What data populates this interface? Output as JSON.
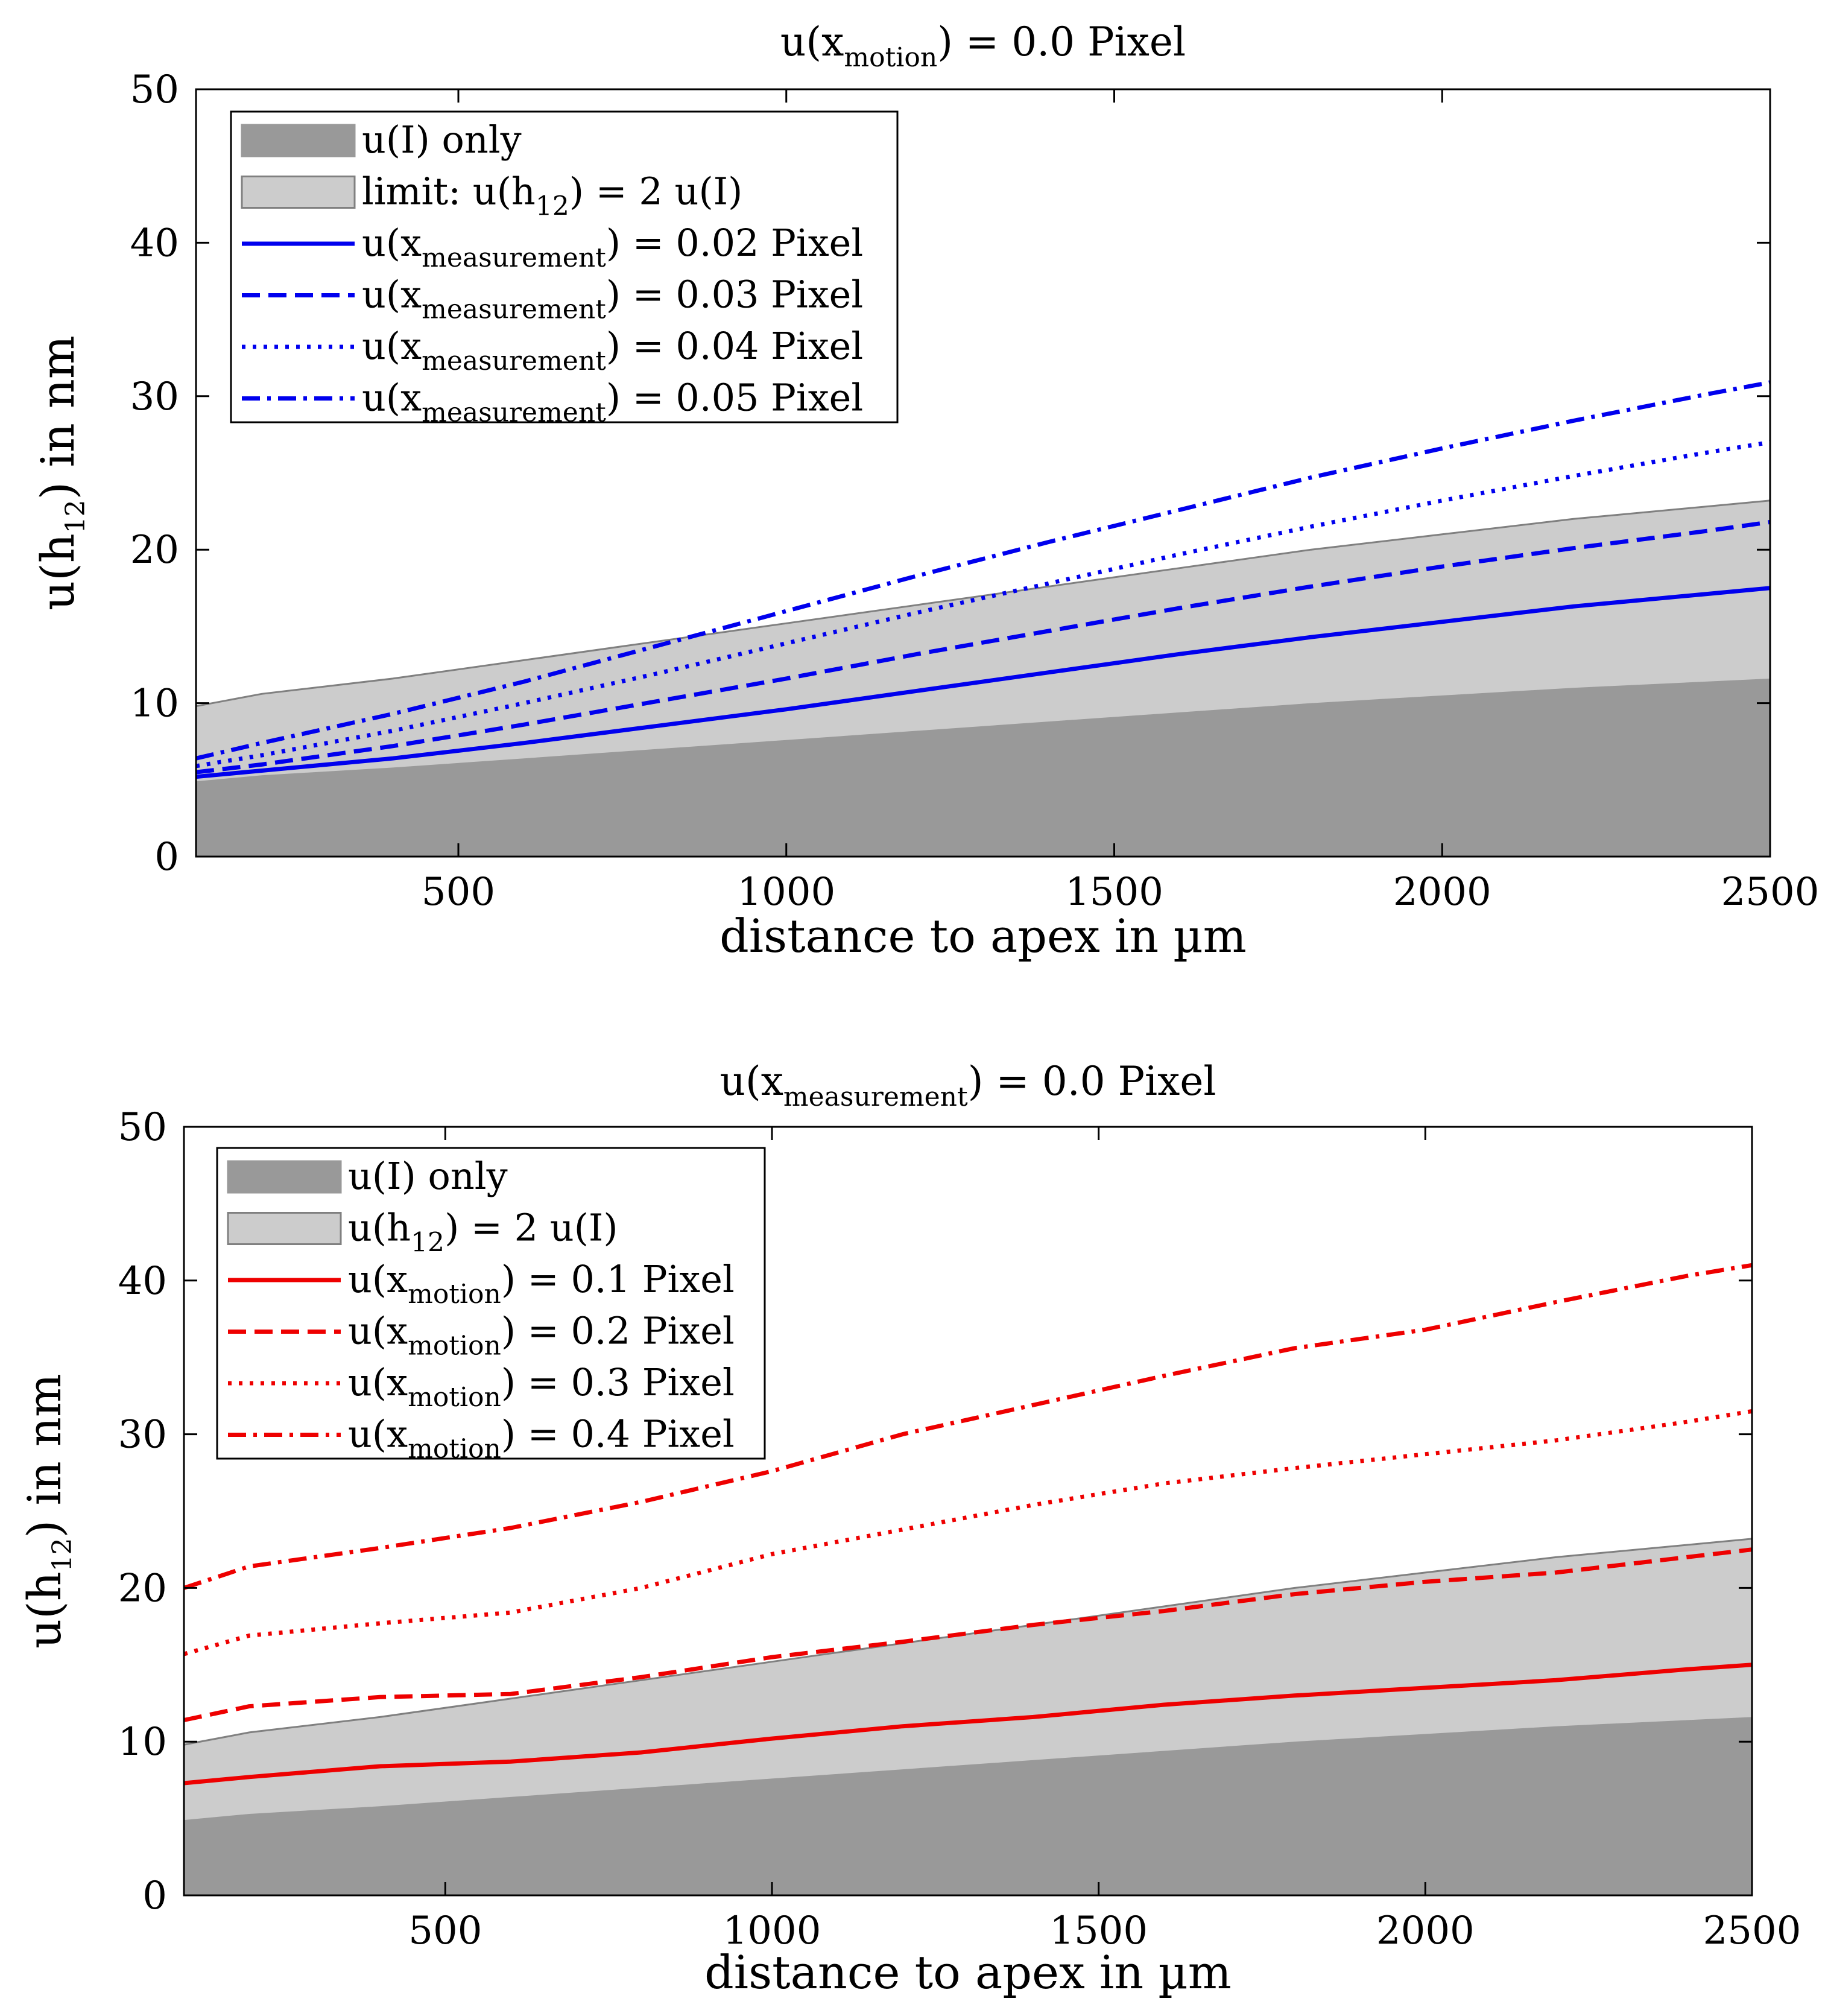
{
  "chart_data": [
    {
      "type": "area",
      "title": {
        "prefix": "u(x",
        "sub": "motion",
        "suffix": ") = 0.0 Pixel"
      },
      "xlabel": "distance to apex in µm",
      "ylabel": {
        "prefix": "u(h",
        "sub": "12",
        "suffix": ") in nm"
      },
      "xlim": [
        100,
        2500
      ],
      "ylim": [
        0,
        50
      ],
      "xticks": [
        500,
        1000,
        1500,
        2000,
        2500
      ],
      "xtick_labels": [
        "500",
        "1000",
        "1500",
        "2000",
        "2500"
      ],
      "yticks": [
        0,
        10,
        20,
        30,
        40,
        50
      ],
      "ytick_labels": [
        "0",
        "10",
        "20",
        "30",
        "40",
        "50"
      ],
      "colors": {
        "dark_band": "#999999",
        "light_band": "#cccccc",
        "series": "#0000ee"
      },
      "x": [
        100,
        200,
        400,
        600,
        800,
        1000,
        1200,
        1400,
        1600,
        1800,
        2000,
        2200,
        2400,
        2500
      ],
      "bands": [
        {
          "name": "u(I) only",
          "kind": "dark",
          "values": [
            4.9,
            5.3,
            5.8,
            6.4,
            7.0,
            7.6,
            8.2,
            8.8,
            9.4,
            10.0,
            10.5,
            11.0,
            11.4,
            11.6
          ]
        },
        {
          "name": "limit: u(h12) = 2 u(I)",
          "kind": "light",
          "values": [
            9.8,
            10.6,
            11.6,
            12.8,
            14.0,
            15.2,
            16.4,
            17.6,
            18.8,
            20.0,
            21.0,
            22.0,
            22.8,
            23.2
          ]
        }
      ],
      "series": [
        {
          "name": "u(x_measurement) = 0.02 Pixel",
          "style": "solid",
          "values": [
            5.2,
            5.6,
            6.4,
            7.4,
            8.5,
            9.6,
            10.8,
            12.0,
            13.2,
            14.3,
            15.3,
            16.3,
            17.1,
            17.5
          ]
        },
        {
          "name": "u(x_measurement) = 0.03 Pixel",
          "style": "dashed",
          "values": [
            5.5,
            6.0,
            7.2,
            8.6,
            10.1,
            11.6,
            13.2,
            14.7,
            16.2,
            17.6,
            18.9,
            20.1,
            21.2,
            21.8
          ]
        },
        {
          "name": "u(x_measurement) = 0.04 Pixel",
          "style": "dotted",
          "values": [
            5.9,
            6.6,
            8.2,
            10.0,
            11.9,
            13.9,
            15.9,
            17.8,
            19.7,
            21.5,
            23.2,
            24.8,
            26.3,
            27.0
          ]
        },
        {
          "name": "u(x_measurement) = 0.05 Pixel",
          "style": "dashdot",
          "values": [
            6.4,
            7.4,
            9.3,
            11.4,
            13.7,
            16.0,
            18.3,
            20.5,
            22.6,
            24.7,
            26.6,
            28.4,
            30.1,
            30.9
          ]
        }
      ],
      "legend": {
        "position": "top-left",
        "entries": [
          {
            "kind": "dark",
            "prefix": "u(I) only",
            "sub": "",
            "suffix": ""
          },
          {
            "kind": "light",
            "prefix": "limit: u(h",
            "sub": "12",
            "suffix": ") = 2 u(I)"
          },
          {
            "kind": "solid",
            "prefix": "u(x",
            "sub": "measurement",
            "suffix": ") = 0.02 Pixel"
          },
          {
            "kind": "dashed",
            "prefix": "u(x",
            "sub": "measurement",
            "suffix": ") = 0.03 Pixel"
          },
          {
            "kind": "dotted",
            "prefix": "u(x",
            "sub": "measurement",
            "suffix": ") = 0.04 Pixel"
          },
          {
            "kind": "dashdot",
            "prefix": "u(x",
            "sub": "measurement",
            "suffix": ") = 0.05 Pixel"
          }
        ]
      }
    },
    {
      "type": "area",
      "title": {
        "prefix": "u(x",
        "sub": "measurement",
        "suffix": ") = 0.0 Pixel"
      },
      "xlabel": "distance to apex in µm",
      "ylabel": {
        "prefix": "u(h",
        "sub": "12",
        "suffix": ") in nm"
      },
      "xlim": [
        100,
        2500
      ],
      "ylim": [
        0,
        50
      ],
      "xticks": [
        500,
        1000,
        1500,
        2000,
        2500
      ],
      "xtick_labels": [
        "500",
        "1000",
        "1500",
        "2000",
        "2500"
      ],
      "yticks": [
        0,
        10,
        20,
        30,
        40,
        50
      ],
      "ytick_labels": [
        "0",
        "10",
        "20",
        "30",
        "40",
        "50"
      ],
      "colors": {
        "dark_band": "#999999",
        "light_band": "#cccccc",
        "series": "#ee0000"
      },
      "x": [
        100,
        200,
        400,
        600,
        800,
        1000,
        1200,
        1400,
        1600,
        1800,
        2000,
        2200,
        2400,
        2500
      ],
      "bands": [
        {
          "name": "u(I) only",
          "kind": "dark",
          "values": [
            4.9,
            5.3,
            5.8,
            6.4,
            7.0,
            7.6,
            8.2,
            8.8,
            9.4,
            10.0,
            10.5,
            11.0,
            11.4,
            11.6
          ]
        },
        {
          "name": "u(h12) = 2 u(I)",
          "kind": "light",
          "values": [
            9.8,
            10.6,
            11.6,
            12.8,
            14.0,
            15.2,
            16.4,
            17.6,
            18.8,
            20.0,
            21.0,
            22.0,
            22.8,
            23.2
          ]
        }
      ],
      "series": [
        {
          "name": "u(x_motion) = 0.1 Pixel",
          "style": "solid",
          "values": [
            7.3,
            7.7,
            8.4,
            8.7,
            9.3,
            10.2,
            11.0,
            11.6,
            12.4,
            13.0,
            13.5,
            14.0,
            14.7,
            15.0
          ]
        },
        {
          "name": "u(x_motion) = 0.2 Pixel",
          "style": "dashed",
          "values": [
            11.4,
            12.3,
            12.9,
            13.1,
            14.2,
            15.5,
            16.5,
            17.6,
            18.5,
            19.6,
            20.4,
            21.0,
            22.0,
            22.5
          ]
        },
        {
          "name": "u(x_motion) = 0.3 Pixel",
          "style": "dotted",
          "values": [
            15.7,
            16.9,
            17.7,
            18.4,
            20.0,
            22.2,
            23.8,
            25.4,
            26.8,
            27.8,
            28.7,
            29.6,
            30.8,
            31.5
          ]
        },
        {
          "name": "u(x_motion) = 0.4 Pixel",
          "style": "dashdot",
          "values": [
            20.0,
            21.4,
            22.6,
            23.9,
            25.6,
            27.6,
            30.0,
            31.9,
            33.8,
            35.6,
            36.8,
            38.6,
            40.3,
            41.0
          ]
        }
      ],
      "legend": {
        "position": "top-left",
        "entries": [
          {
            "kind": "dark",
            "prefix": "u(I) only",
            "sub": "",
            "suffix": ""
          },
          {
            "kind": "light",
            "prefix": "u(h",
            "sub": "12",
            "suffix": ") = 2 u(I)"
          },
          {
            "kind": "solid",
            "prefix": "u(x",
            "sub": "motion",
            "suffix": ") = 0.1 Pixel"
          },
          {
            "kind": "dashed",
            "prefix": "u(x",
            "sub": "motion",
            "suffix": ") = 0.2 Pixel"
          },
          {
            "kind": "dotted",
            "prefix": "u(x",
            "sub": "motion",
            "suffix": ") = 0.3 Pixel"
          },
          {
            "kind": "dashdot",
            "prefix": "u(x",
            "sub": "motion",
            "suffix": ") = 0.4 Pixel"
          }
        ]
      }
    }
  ]
}
